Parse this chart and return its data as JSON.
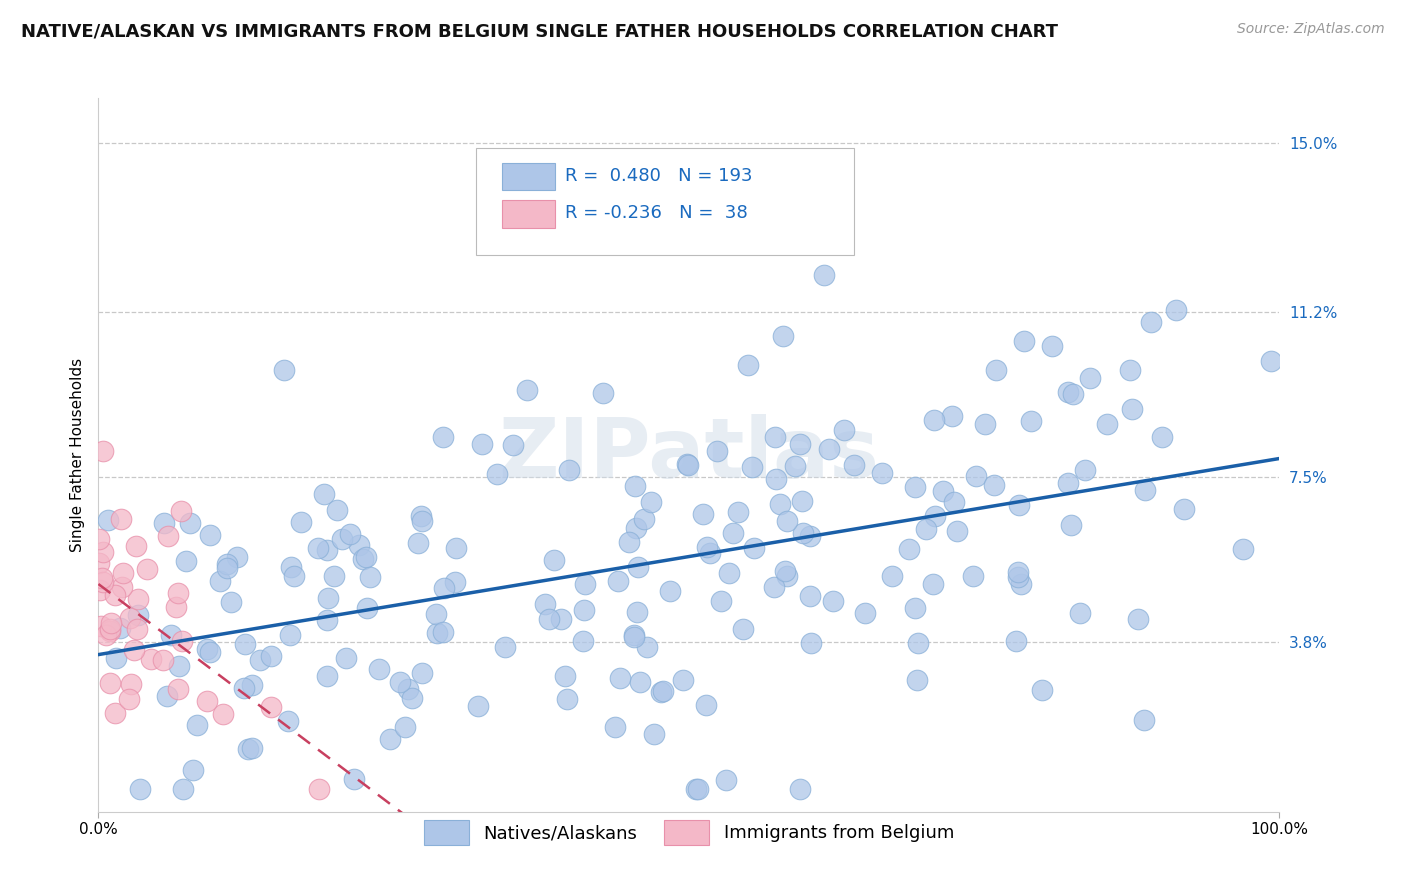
{
  "title": "NATIVE/ALASKAN VS IMMIGRANTS FROM BELGIUM SINGLE FATHER HOUSEHOLDS CORRELATION CHART",
  "source": "Source: ZipAtlas.com",
  "ylabel": "Single Father Households",
  "xlabel": "",
  "xlim": [
    0.0,
    100.0
  ],
  "ylim": [
    0.0,
    16.0
  ],
  "yticks": [
    3.8,
    7.5,
    11.2,
    15.0
  ],
  "xticks": [
    0.0,
    100.0
  ],
  "xtick_labels": [
    "0.0%",
    "100.0%"
  ],
  "ytick_labels": [
    "3.8%",
    "7.5%",
    "11.2%",
    "15.0%"
  ],
  "blue_R": 0.48,
  "blue_N": 193,
  "pink_R": -0.236,
  "pink_N": 38,
  "blue_color": "#aec6e8",
  "pink_color": "#f4b8c8",
  "blue_edge_color": "#8ab0d8",
  "pink_edge_color": "#e890aa",
  "blue_line_color": "#1a5fa8",
  "pink_line_color": "#c84060",
  "pink_line_dash": [
    6,
    4
  ],
  "legend_label_blue": "Natives/Alaskans",
  "legend_label_pink": "Immigrants from Belgium",
  "watermark_text": "ZIPatlas",
  "background_color": "#ffffff",
  "grid_color": "#c8c8c8",
  "title_fontsize": 13,
  "axis_label_fontsize": 11,
  "tick_fontsize": 11,
  "legend_fontsize": 13,
  "source_fontsize": 10,
  "blue_seed": 12,
  "pink_seed": 99
}
